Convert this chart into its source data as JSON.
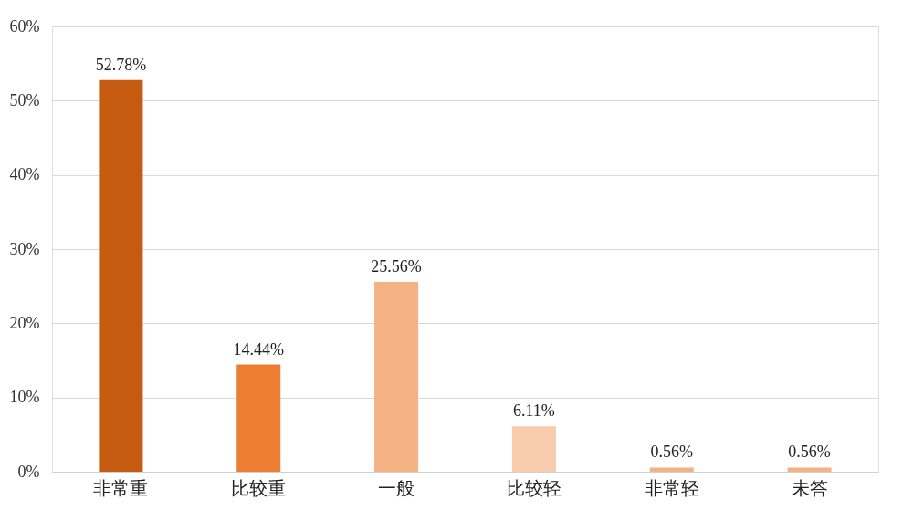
{
  "chart_data": {
    "type": "bar",
    "categories": [
      "非常重",
      "比较重",
      "一般",
      "比较轻",
      "非常轻",
      "未答"
    ],
    "values": [
      52.78,
      14.44,
      25.56,
      6.11,
      0.56,
      0.56
    ],
    "colors": [
      "#c55a11",
      "#ed7d31",
      "#f4b183",
      "#f8cbad",
      "#f4b183",
      "#f4b183"
    ],
    "value_labels": [
      "52.78%",
      "14.44%",
      "25.56%",
      "6.11%",
      "0.56%",
      "0.56%"
    ],
    "ylim": [
      0,
      60
    ],
    "yticks": [
      {
        "value": 0,
        "label": "0%"
      },
      {
        "value": 10,
        "label": "10%"
      },
      {
        "value": 20,
        "label": "20%"
      },
      {
        "value": 30,
        "label": "30%"
      },
      {
        "value": 40,
        "label": "40%"
      },
      {
        "value": 50,
        "label": "50%"
      },
      {
        "value": 60,
        "label": "60%"
      }
    ],
    "grid": "y"
  }
}
